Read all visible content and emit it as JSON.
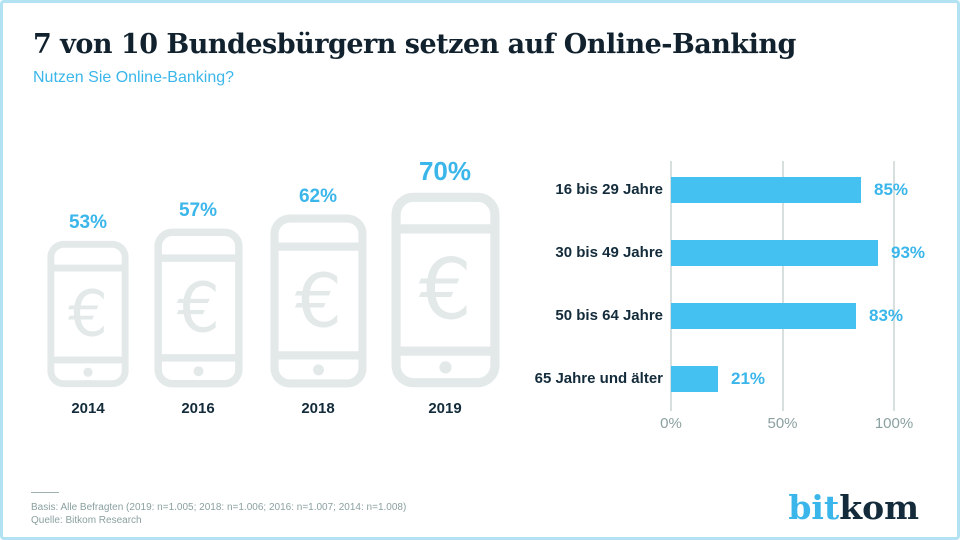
{
  "header": {
    "title": "7 von 10 Bundesbürgern setzen auf Online-Banking",
    "subtitle": "Nutzen Sie Online-Banking?"
  },
  "colors": {
    "accent_blue": "#3ab6ea",
    "bar_blue": "#45c1f1",
    "dark_navy": "#132b3a",
    "phone_gray": "#e3e9e9",
    "grid_gray": "#d8dfdf",
    "muted_gray": "#8ba0a0",
    "frame_border": "#b3e2f2"
  },
  "chart_data": [
    {
      "type": "bar",
      "variant": "pictogram",
      "icon": "smartphone-euro",
      "categories": [
        "2014",
        "2016",
        "2018",
        "2019"
      ],
      "values": [
        53,
        57,
        62,
        70
      ],
      "labels": [
        "53%",
        "57%",
        "62%",
        "70%"
      ],
      "unit": "%",
      "highlight_index": 3
    },
    {
      "type": "bar",
      "orientation": "horizontal",
      "categories": [
        "16 bis 29 Jahre",
        "30 bis 49 Jahre",
        "50 bis 64 Jahre",
        "65 Jahre und älter"
      ],
      "values": [
        85,
        93,
        83,
        21
      ],
      "labels": [
        "85%",
        "93%",
        "83%",
        "21%"
      ],
      "unit": "%",
      "xlim": [
        0,
        100
      ],
      "xticks": [
        0,
        50,
        100
      ],
      "xtick_labels": [
        "0%",
        "50%",
        "100%"
      ],
      "grid": true,
      "legend": false
    }
  ],
  "footer": {
    "basis": "Basis: Alle Befragten (2019: n=1.005; 2018: n=1.006; 2016: n=1.007; 2014: n=1.008)",
    "source": "Quelle: Bitkom Research",
    "logo": {
      "part1": "bit",
      "part2": "kom"
    }
  }
}
